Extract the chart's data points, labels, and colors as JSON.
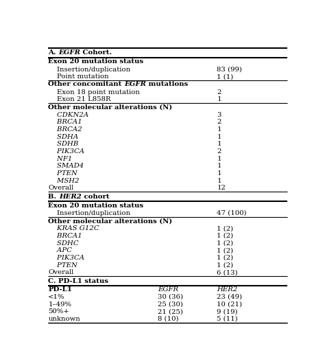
{
  "background_color": "#ffffff",
  "figsize": [
    4.74,
    5.3
  ],
  "dpi": 100,
  "rows": [
    {
      "text": "A. ",
      "italic": "EGFR",
      "rest": " Cohort.",
      "col2": "",
      "col3": "",
      "style": "section_header",
      "bottom_border": true,
      "border_lw": 1.5
    },
    {
      "text": "Exon 20 mutation status",
      "italic": "",
      "rest": "",
      "col2": "",
      "col3": "",
      "style": "subsection_bold",
      "bottom_border": false,
      "border_lw": 0.8
    },
    {
      "text": "    Insertion/duplication",
      "italic": "",
      "rest": "",
      "col2": "",
      "col3": "83 (99)",
      "style": "normal",
      "bottom_border": false,
      "border_lw": 0.8
    },
    {
      "text": "    Point mutation",
      "italic": "",
      "rest": "",
      "col2": "",
      "col3": "1 (1)",
      "style": "normal",
      "bottom_border": true,
      "border_lw": 0.8
    },
    {
      "text": "Other concomitant ",
      "italic": "EGFR",
      "rest": " mutations",
      "col2": "",
      "col3": "",
      "style": "subsection_bold_mixed",
      "bottom_border": false,
      "border_lw": 0.8
    },
    {
      "text": "    Exon 18 point mutation",
      "italic": "",
      "rest": "",
      "col2": "",
      "col3": "2",
      "style": "normal",
      "bottom_border": false,
      "border_lw": 0.8
    },
    {
      "text": "    Exon 21 L858R",
      "italic": "",
      "rest": "",
      "col2": "",
      "col3": "1",
      "style": "normal",
      "bottom_border": true,
      "border_lw": 0.8
    },
    {
      "text": "Other molecular alterations (N)",
      "italic": "",
      "rest": "",
      "col2": "",
      "col3": "",
      "style": "subsection_bold",
      "bottom_border": false,
      "border_lw": 0.8
    },
    {
      "text": "    CDKN2A",
      "italic": "",
      "rest": "",
      "col2": "",
      "col3": "3",
      "style": "italic",
      "bottom_border": false,
      "border_lw": 0.8
    },
    {
      "text": "    BRCA1",
      "italic": "",
      "rest": "",
      "col2": "",
      "col3": "2",
      "style": "italic",
      "bottom_border": false,
      "border_lw": 0.8
    },
    {
      "text": "    BRCA2",
      "italic": "",
      "rest": "",
      "col2": "",
      "col3": "1",
      "style": "italic",
      "bottom_border": false,
      "border_lw": 0.8
    },
    {
      "text": "    SDHA",
      "italic": "",
      "rest": "",
      "col2": "",
      "col3": "1",
      "style": "italic",
      "bottom_border": false,
      "border_lw": 0.8
    },
    {
      "text": "    SDHB",
      "italic": "",
      "rest": "",
      "col2": "",
      "col3": "1",
      "style": "italic",
      "bottom_border": false,
      "border_lw": 0.8
    },
    {
      "text": "    PIK3CA",
      "italic": "",
      "rest": "",
      "col2": "",
      "col3": "2",
      "style": "italic",
      "bottom_border": false,
      "border_lw": 0.8
    },
    {
      "text": "    NF1",
      "italic": "",
      "rest": "",
      "col2": "",
      "col3": "1",
      "style": "italic",
      "bottom_border": false,
      "border_lw": 0.8
    },
    {
      "text": "    SMAD4",
      "italic": "",
      "rest": "",
      "col2": "",
      "col3": "1",
      "style": "italic",
      "bottom_border": false,
      "border_lw": 0.8
    },
    {
      "text": "    PTEN",
      "italic": "",
      "rest": "",
      "col2": "",
      "col3": "1",
      "style": "italic",
      "bottom_border": false,
      "border_lw": 0.8
    },
    {
      "text": "    MSH2",
      "italic": "",
      "rest": "",
      "col2": "",
      "col3": "1",
      "style": "italic",
      "bottom_border": false,
      "border_lw": 0.8
    },
    {
      "text": "Overall",
      "italic": "",
      "rest": "",
      "col2": "",
      "col3": "12",
      "style": "normal",
      "bottom_border": true,
      "border_lw": 0.8
    },
    {
      "text": "B. ",
      "italic": "HER2",
      "rest": " cohort",
      "col2": "",
      "col3": "",
      "style": "section_header",
      "bottom_border": true,
      "border_lw": 1.5
    },
    {
      "text": "Exon 20 mutation status",
      "italic": "",
      "rest": "",
      "col2": "",
      "col3": "",
      "style": "subsection_bold",
      "bottom_border": false,
      "border_lw": 0.8
    },
    {
      "text": "    Insertion/duplication",
      "italic": "",
      "rest": "",
      "col2": "",
      "col3": "47 (100)",
      "style": "normal",
      "bottom_border": true,
      "border_lw": 0.8
    },
    {
      "text": "Other molecular alterations (N)",
      "italic": "",
      "rest": "",
      "col2": "",
      "col3": "",
      "style": "subsection_bold",
      "bottom_border": false,
      "border_lw": 0.8
    },
    {
      "text": "    KRAS G12C",
      "italic": "",
      "rest": "",
      "col2": "",
      "col3": "1 (2)",
      "style": "italic",
      "bottom_border": false,
      "border_lw": 0.8
    },
    {
      "text": "    BRCA1",
      "italic": "",
      "rest": "",
      "col2": "",
      "col3": "1 (2)",
      "style": "italic",
      "bottom_border": false,
      "border_lw": 0.8
    },
    {
      "text": "    SDHC",
      "italic": "",
      "rest": "",
      "col2": "",
      "col3": "1 (2)",
      "style": "italic",
      "bottom_border": false,
      "border_lw": 0.8
    },
    {
      "text": "    APC",
      "italic": "",
      "rest": "",
      "col2": "",
      "col3": "1 (2)",
      "style": "italic",
      "bottom_border": false,
      "border_lw": 0.8
    },
    {
      "text": "    PIK3CA",
      "italic": "",
      "rest": "",
      "col2": "",
      "col3": "1 (2)",
      "style": "italic",
      "bottom_border": false,
      "border_lw": 0.8
    },
    {
      "text": "    PTEN",
      "italic": "",
      "rest": "",
      "col2": "",
      "col3": "1 (2)",
      "style": "italic",
      "bottom_border": false,
      "border_lw": 0.8
    },
    {
      "text": "Overall",
      "italic": "",
      "rest": "",
      "col2": "",
      "col3": "6 (13)",
      "style": "normal",
      "bottom_border": true,
      "border_lw": 0.8
    },
    {
      "text": "C. PD-L1 status",
      "italic": "",
      "rest": "",
      "col2": "",
      "col3": "",
      "style": "section_header_plain",
      "bottom_border": true,
      "border_lw": 1.5
    },
    {
      "text": "PD-L1",
      "italic": "",
      "rest": "",
      "col2": "EGFR",
      "col3": "HER2",
      "style": "header_row_pdl1",
      "bottom_border": false,
      "border_lw": 0.8
    },
    {
      "text": "<1%",
      "italic": "",
      "rest": "",
      "col2": "30 (36)",
      "col3": "23 (49)",
      "style": "normal_3col",
      "bottom_border": false,
      "border_lw": 0.8
    },
    {
      "text": "1–49%",
      "italic": "",
      "rest": "",
      "col2": "25 (30)",
      "col3": "10 (21)",
      "style": "normal_3col",
      "bottom_border": false,
      "border_lw": 0.8
    },
    {
      "text": "50%+",
      "italic": "",
      "rest": "",
      "col2": "21 (25)",
      "col3": "9 (19)",
      "style": "normal_3col",
      "bottom_border": false,
      "border_lw": 0.8
    },
    {
      "text": "unknown",
      "italic": "",
      "rest": "",
      "col2": "8 (10)",
      "col3": "5 (11)",
      "style": "normal_3col",
      "bottom_border": true,
      "border_lw": 0.8
    }
  ]
}
